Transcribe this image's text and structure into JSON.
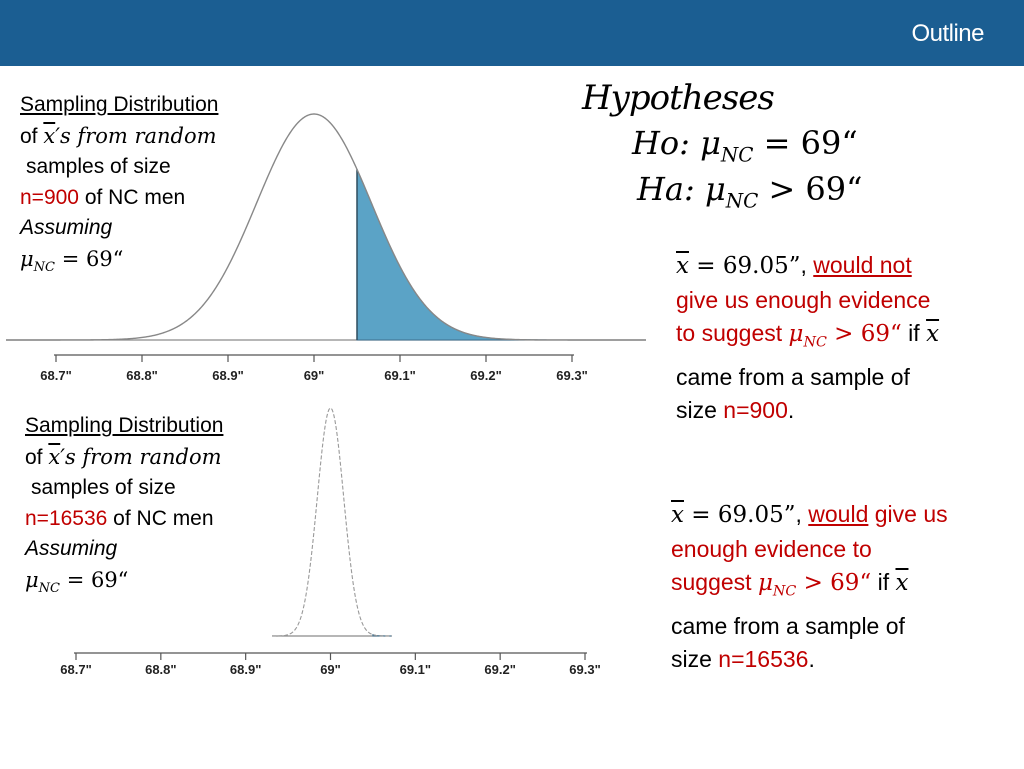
{
  "header": {
    "title": "Outline"
  },
  "colors": {
    "header_bg": "#1b5e92",
    "fill": "#5ba3c6",
    "emphasis": "#c00000"
  },
  "caption_top": {
    "line1": "Sampling Distribution",
    "line2_prefix": "of ",
    "line2_xbar": "x",
    "line2_suffix": "′s from random",
    "line3": "samples of size",
    "line4_red": "n=900",
    "line4_rest": " of NC men",
    "line5": "Assuming",
    "line6_mu": "μ",
    "line6_sub": "NC",
    "line6_rest": " = 69“"
  },
  "caption_bottom": {
    "line1": "Sampling Distribution",
    "line2_prefix": "of ",
    "line2_xbar": "x",
    "line2_suffix": "′s from random",
    "line3": "samples of size",
    "line4_red": "n=16536",
    "line4_rest": " of NC men",
    "line5": "Assuming",
    "line6_mu": "μ",
    "line6_sub": "NC",
    "line6_rest": " = 69“"
  },
  "hypotheses": {
    "title": "Hypotheses",
    "h0_label": "Ho",
    "h0_rel": ":  μ",
    "h0_sub": "NC",
    "h0_rest": " = 69“",
    "ha_label": "Ha",
    "ha_rel": ": μ",
    "ha_sub": "NC",
    "ha_rest": " > 69“"
  },
  "explain_top": {
    "xbar": "x",
    "value": " = 69.05”",
    "comma": ", ",
    "phrase_red": "would not",
    "line2_red": "give us enough evidence",
    "line3_red_prefix": "to suggest ",
    "mu": "μ",
    "mu_sub": "NC",
    "gt": " > 69“",
    "if_text": " if ",
    "if_xbar": "x",
    "line4": "came from a sample of",
    "line5_prefix": "size ",
    "line5_red": "n=900",
    "line5_suffix": "."
  },
  "explain_bottom": {
    "xbar": "x",
    "value": " = 69.05”",
    "comma": ", ",
    "phrase_red": "would",
    "phrase_rest_red": " give us",
    "line2_red": "enough evidence to",
    "line3_red_prefix": "suggest ",
    "mu": "μ",
    "mu_sub": "NC",
    "gt": " > 69“",
    "if_text": " if ",
    "if_xbar": "x",
    "line4": "came from a sample of",
    "line5_prefix": "size ",
    "line5_red": "n=16536",
    "line5_suffix": "."
  },
  "chart_data": [
    {
      "type": "area",
      "mean": 69.0,
      "sd": 0.0667,
      "shaded_from": 69.05,
      "xlim": [
        68.7,
        69.3
      ],
      "ticks": [
        68.7,
        68.8,
        68.9,
        69.0,
        69.1,
        69.2,
        69.3
      ],
      "tick_labels": [
        "68.7\"",
        "68.8\"",
        "68.9\"",
        "69\"",
        "69.1\"",
        "69.2\"",
        "69.3\""
      ]
    },
    {
      "type": "area",
      "mean": 69.0,
      "sd": 0.0156,
      "shaded_from": 69.05,
      "xlim": [
        68.7,
        69.3
      ],
      "ticks": [
        68.7,
        68.8,
        68.9,
        69.0,
        69.1,
        69.2,
        69.3
      ],
      "tick_labels": [
        "68.7\"",
        "68.8\"",
        "68.9\"",
        "69\"",
        "69.1\"",
        "69.2\"",
        "69.3\""
      ]
    }
  ]
}
